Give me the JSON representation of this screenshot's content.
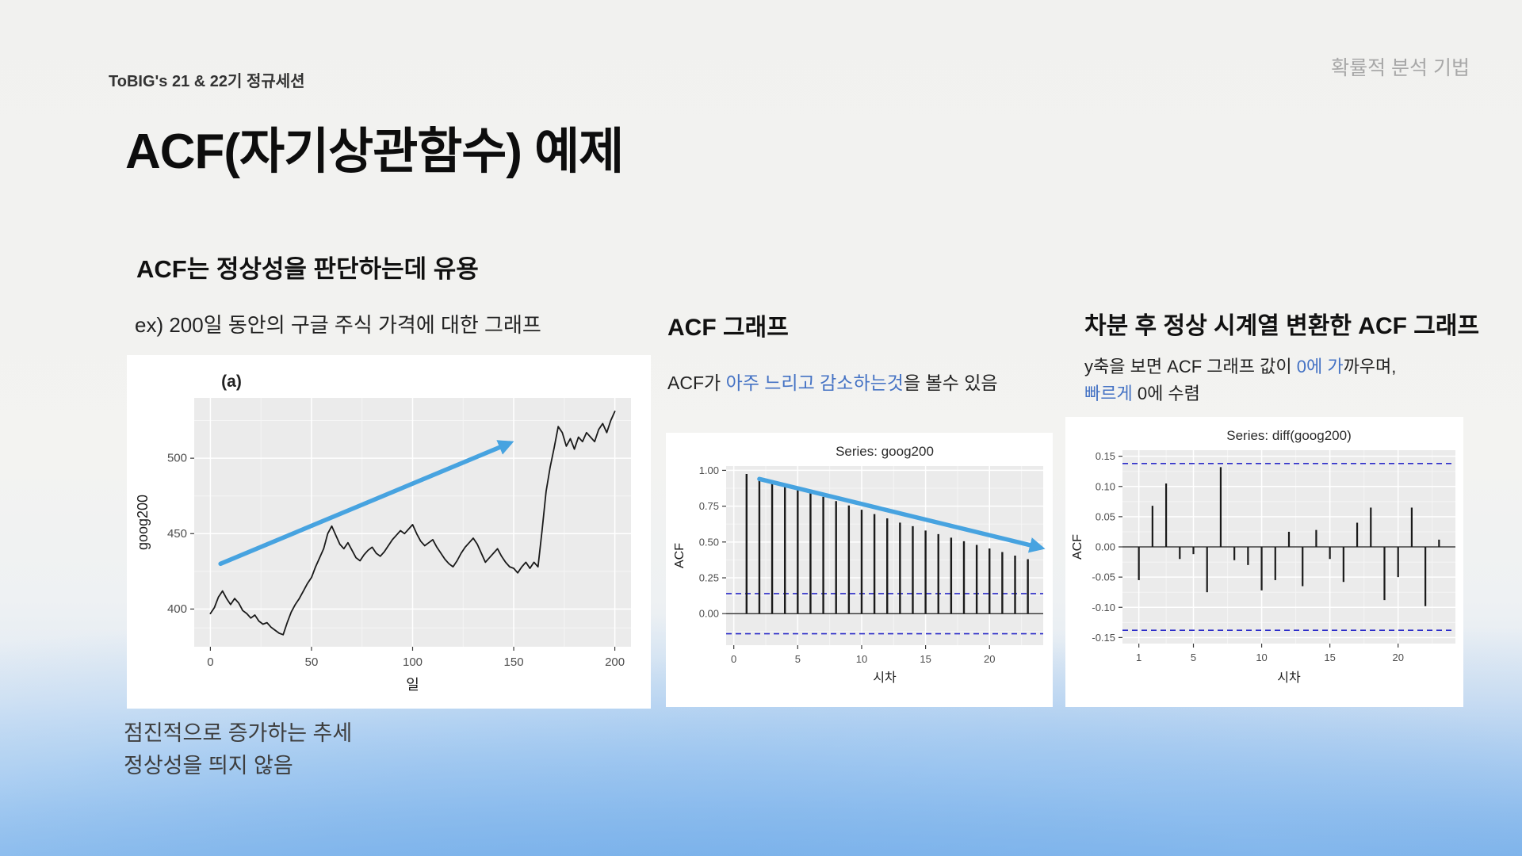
{
  "slide": {
    "header_left": "ToBIG's 21 & 22기 정규세션",
    "header_right": "확률적 분석 기법",
    "title": "ACF(자기상관함수) 예제",
    "subtitle": "ACF는 정상성을 판단하는데 유용"
  },
  "left_panel": {
    "caption": "ex) 200일 동안의 구글 주식 가격에 대한 그래프",
    "note_line1": "점진적으로 증가하는 추세",
    "note_line2": "정상성을 띄지 않음"
  },
  "middle_panel": {
    "heading": "ACF 그래프",
    "desc_prefix": "ACF가 ",
    "desc_highlight": "아주 느리고 감소하는것",
    "desc_suffix": "을 볼수 있음"
  },
  "right_panel": {
    "heading": "차분 후 정상 시계열 변환한 ACF 그래프",
    "desc_line1_prefix": "y축을 보면 ACF 그래프 값이 ",
    "desc_line1_highlight": "0에 가",
    "desc_line1_suffix": "까우며,",
    "desc_line2_highlight": "빠르게",
    "desc_line2_suffix": " 0에 수렴"
  },
  "colors": {
    "highlight_text": "#4472c4",
    "arrow": "#47a3e0",
    "conf_dash": "#2c2cc9",
    "panel_bg": "#ebebeb",
    "grid_major": "#ffffff",
    "grid_minor": "#f5f5f5",
    "series": "#1a1a1a"
  },
  "chart_data": [
    {
      "id": "goog200_price",
      "type": "line",
      "title": "(a)",
      "xlabel": "일",
      "ylabel": "goog200",
      "xlim": [
        -8,
        208
      ],
      "ylim": [
        375,
        540
      ],
      "xticks": [
        0,
        50,
        100,
        150,
        200
      ],
      "ytick_values": [
        400,
        450,
        500
      ],
      "ytick_labels": [
        "400",
        "450",
        "500"
      ],
      "x_minor": [
        25,
        75,
        125,
        175
      ],
      "y_minor": [
        387.5,
        425,
        475,
        525
      ],
      "grid": true,
      "legend": "none",
      "points": [
        [
          0,
          397
        ],
        [
          2,
          401
        ],
        [
          4,
          408
        ],
        [
          6,
          412
        ],
        [
          8,
          407
        ],
        [
          10,
          403
        ],
        [
          12,
          407
        ],
        [
          14,
          404
        ],
        [
          16,
          399
        ],
        [
          18,
          397
        ],
        [
          20,
          394
        ],
        [
          22,
          396
        ],
        [
          24,
          392
        ],
        [
          26,
          390
        ],
        [
          28,
          391
        ],
        [
          30,
          388
        ],
        [
          32,
          386
        ],
        [
          34,
          384
        ],
        [
          36,
          383
        ],
        [
          38,
          391
        ],
        [
          40,
          398
        ],
        [
          42,
          403
        ],
        [
          44,
          407
        ],
        [
          46,
          412
        ],
        [
          48,
          417
        ],
        [
          50,
          421
        ],
        [
          52,
          428
        ],
        [
          54,
          434
        ],
        [
          56,
          440
        ],
        [
          58,
          450
        ],
        [
          60,
          455
        ],
        [
          62,
          449
        ],
        [
          64,
          443
        ],
        [
          66,
          440
        ],
        [
          68,
          444
        ],
        [
          70,
          439
        ],
        [
          72,
          434
        ],
        [
          74,
          432
        ],
        [
          76,
          436
        ],
        [
          78,
          439
        ],
        [
          80,
          441
        ],
        [
          82,
          437
        ],
        [
          84,
          435
        ],
        [
          86,
          438
        ],
        [
          88,
          442
        ],
        [
          90,
          446
        ],
        [
          92,
          449
        ],
        [
          94,
          452
        ],
        [
          96,
          450
        ],
        [
          98,
          453
        ],
        [
          100,
          456
        ],
        [
          102,
          450
        ],
        [
          104,
          445
        ],
        [
          106,
          442
        ],
        [
          108,
          444
        ],
        [
          110,
          446
        ],
        [
          112,
          441
        ],
        [
          114,
          437
        ],
        [
          116,
          433
        ],
        [
          118,
          430
        ],
        [
          120,
          428
        ],
        [
          122,
          432
        ],
        [
          124,
          437
        ],
        [
          126,
          441
        ],
        [
          128,
          444
        ],
        [
          130,
          447
        ],
        [
          132,
          443
        ],
        [
          134,
          437
        ],
        [
          136,
          431
        ],
        [
          138,
          434
        ],
        [
          140,
          437
        ],
        [
          142,
          440
        ],
        [
          144,
          435
        ],
        [
          146,
          431
        ],
        [
          148,
          428
        ],
        [
          150,
          427
        ],
        [
          152,
          424
        ],
        [
          154,
          428
        ],
        [
          156,
          431
        ],
        [
          158,
          427
        ],
        [
          160,
          431
        ],
        [
          162,
          428
        ],
        [
          164,
          452
        ],
        [
          166,
          478
        ],
        [
          168,
          494
        ],
        [
          170,
          507
        ],
        [
          172,
          521
        ],
        [
          174,
          517
        ],
        [
          176,
          508
        ],
        [
          178,
          513
        ],
        [
          180,
          506
        ],
        [
          182,
          514
        ],
        [
          184,
          511
        ],
        [
          186,
          517
        ],
        [
          188,
          514
        ],
        [
          190,
          511
        ],
        [
          192,
          519
        ],
        [
          194,
          523
        ],
        [
          196,
          517
        ],
        [
          198,
          525
        ],
        [
          200,
          531
        ]
      ],
      "arrow": {
        "from": [
          5,
          430
        ],
        "to": [
          148,
          510
        ]
      }
    },
    {
      "id": "acf_goog200",
      "type": "acf",
      "title": "Series: goog200",
      "xlabel": "시차",
      "ylabel": "ACF",
      "xlim": [
        -0.6,
        24.2
      ],
      "ylim": [
        -0.22,
        1.03
      ],
      "xticks": [
        0,
        5,
        10,
        15,
        20
      ],
      "ytick_values": [
        0,
        0.25,
        0.5,
        0.75,
        1
      ],
      "ytick_labels": [
        "0.00",
        "0.25",
        "0.50",
        "0.75",
        "1.00"
      ],
      "x_minor": [
        2.5,
        7.5,
        12.5,
        17.5,
        22.5
      ],
      "y_minor": [
        -0.125,
        0.125,
        0.375,
        0.625,
        0.875
      ],
      "grid": true,
      "legend": "none",
      "conf": 0.14,
      "lags": [
        1,
        2,
        3,
        4,
        5,
        6,
        7,
        8,
        9,
        10,
        11,
        12,
        13,
        14,
        15,
        16,
        17,
        18,
        19,
        20,
        21,
        22,
        23
      ],
      "values": [
        0.975,
        0.95,
        0.925,
        0.9,
        0.87,
        0.845,
        0.815,
        0.785,
        0.755,
        0.725,
        0.695,
        0.665,
        0.635,
        0.61,
        0.58,
        0.555,
        0.53,
        0.505,
        0.48,
        0.455,
        0.43,
        0.405,
        0.38
      ],
      "arrow": {
        "from": [
          2,
          0.94
        ],
        "to": [
          24,
          0.46
        ]
      }
    },
    {
      "id": "acf_diff_goog200",
      "type": "acf",
      "title": "Series: diff(goog200)",
      "xlabel": "시차",
      "ylabel": "ACF",
      "xlim": [
        -0.2,
        24.2
      ],
      "ylim": [
        -0.16,
        0.16
      ],
      "xticks": [
        1,
        5,
        10,
        15,
        20
      ],
      "ytick_values": [
        -0.15,
        -0.1,
        -0.05,
        0,
        0.05,
        0.1,
        0.15
      ],
      "ytick_labels": [
        "-0.15",
        "-0.10",
        "-0.05",
        "0.00",
        "0.05",
        "0.10",
        "0.15"
      ],
      "x_minor": [
        3,
        7.5,
        12.5,
        17.5,
        22.5
      ],
      "y_minor": [
        -0.125,
        -0.075,
        -0.025,
        0.025,
        0.075,
        0.125
      ],
      "grid": true,
      "legend": "none",
      "conf": 0.138,
      "lags": [
        1,
        2,
        3,
        4,
        5,
        6,
        7,
        8,
        9,
        10,
        11,
        12,
        13,
        14,
        15,
        16,
        17,
        18,
        19,
        20,
        21,
        22,
        23
      ],
      "values": [
        -0.055,
        0.068,
        0.105,
        -0.02,
        -0.012,
        -0.075,
        0.132,
        -0.022,
        -0.03,
        -0.072,
        -0.055,
        0.025,
        -0.065,
        0.028,
        -0.02,
        -0.058,
        0.04,
        0.065,
        -0.088,
        -0.05,
        0.065,
        -0.098,
        0.012
      ]
    }
  ]
}
